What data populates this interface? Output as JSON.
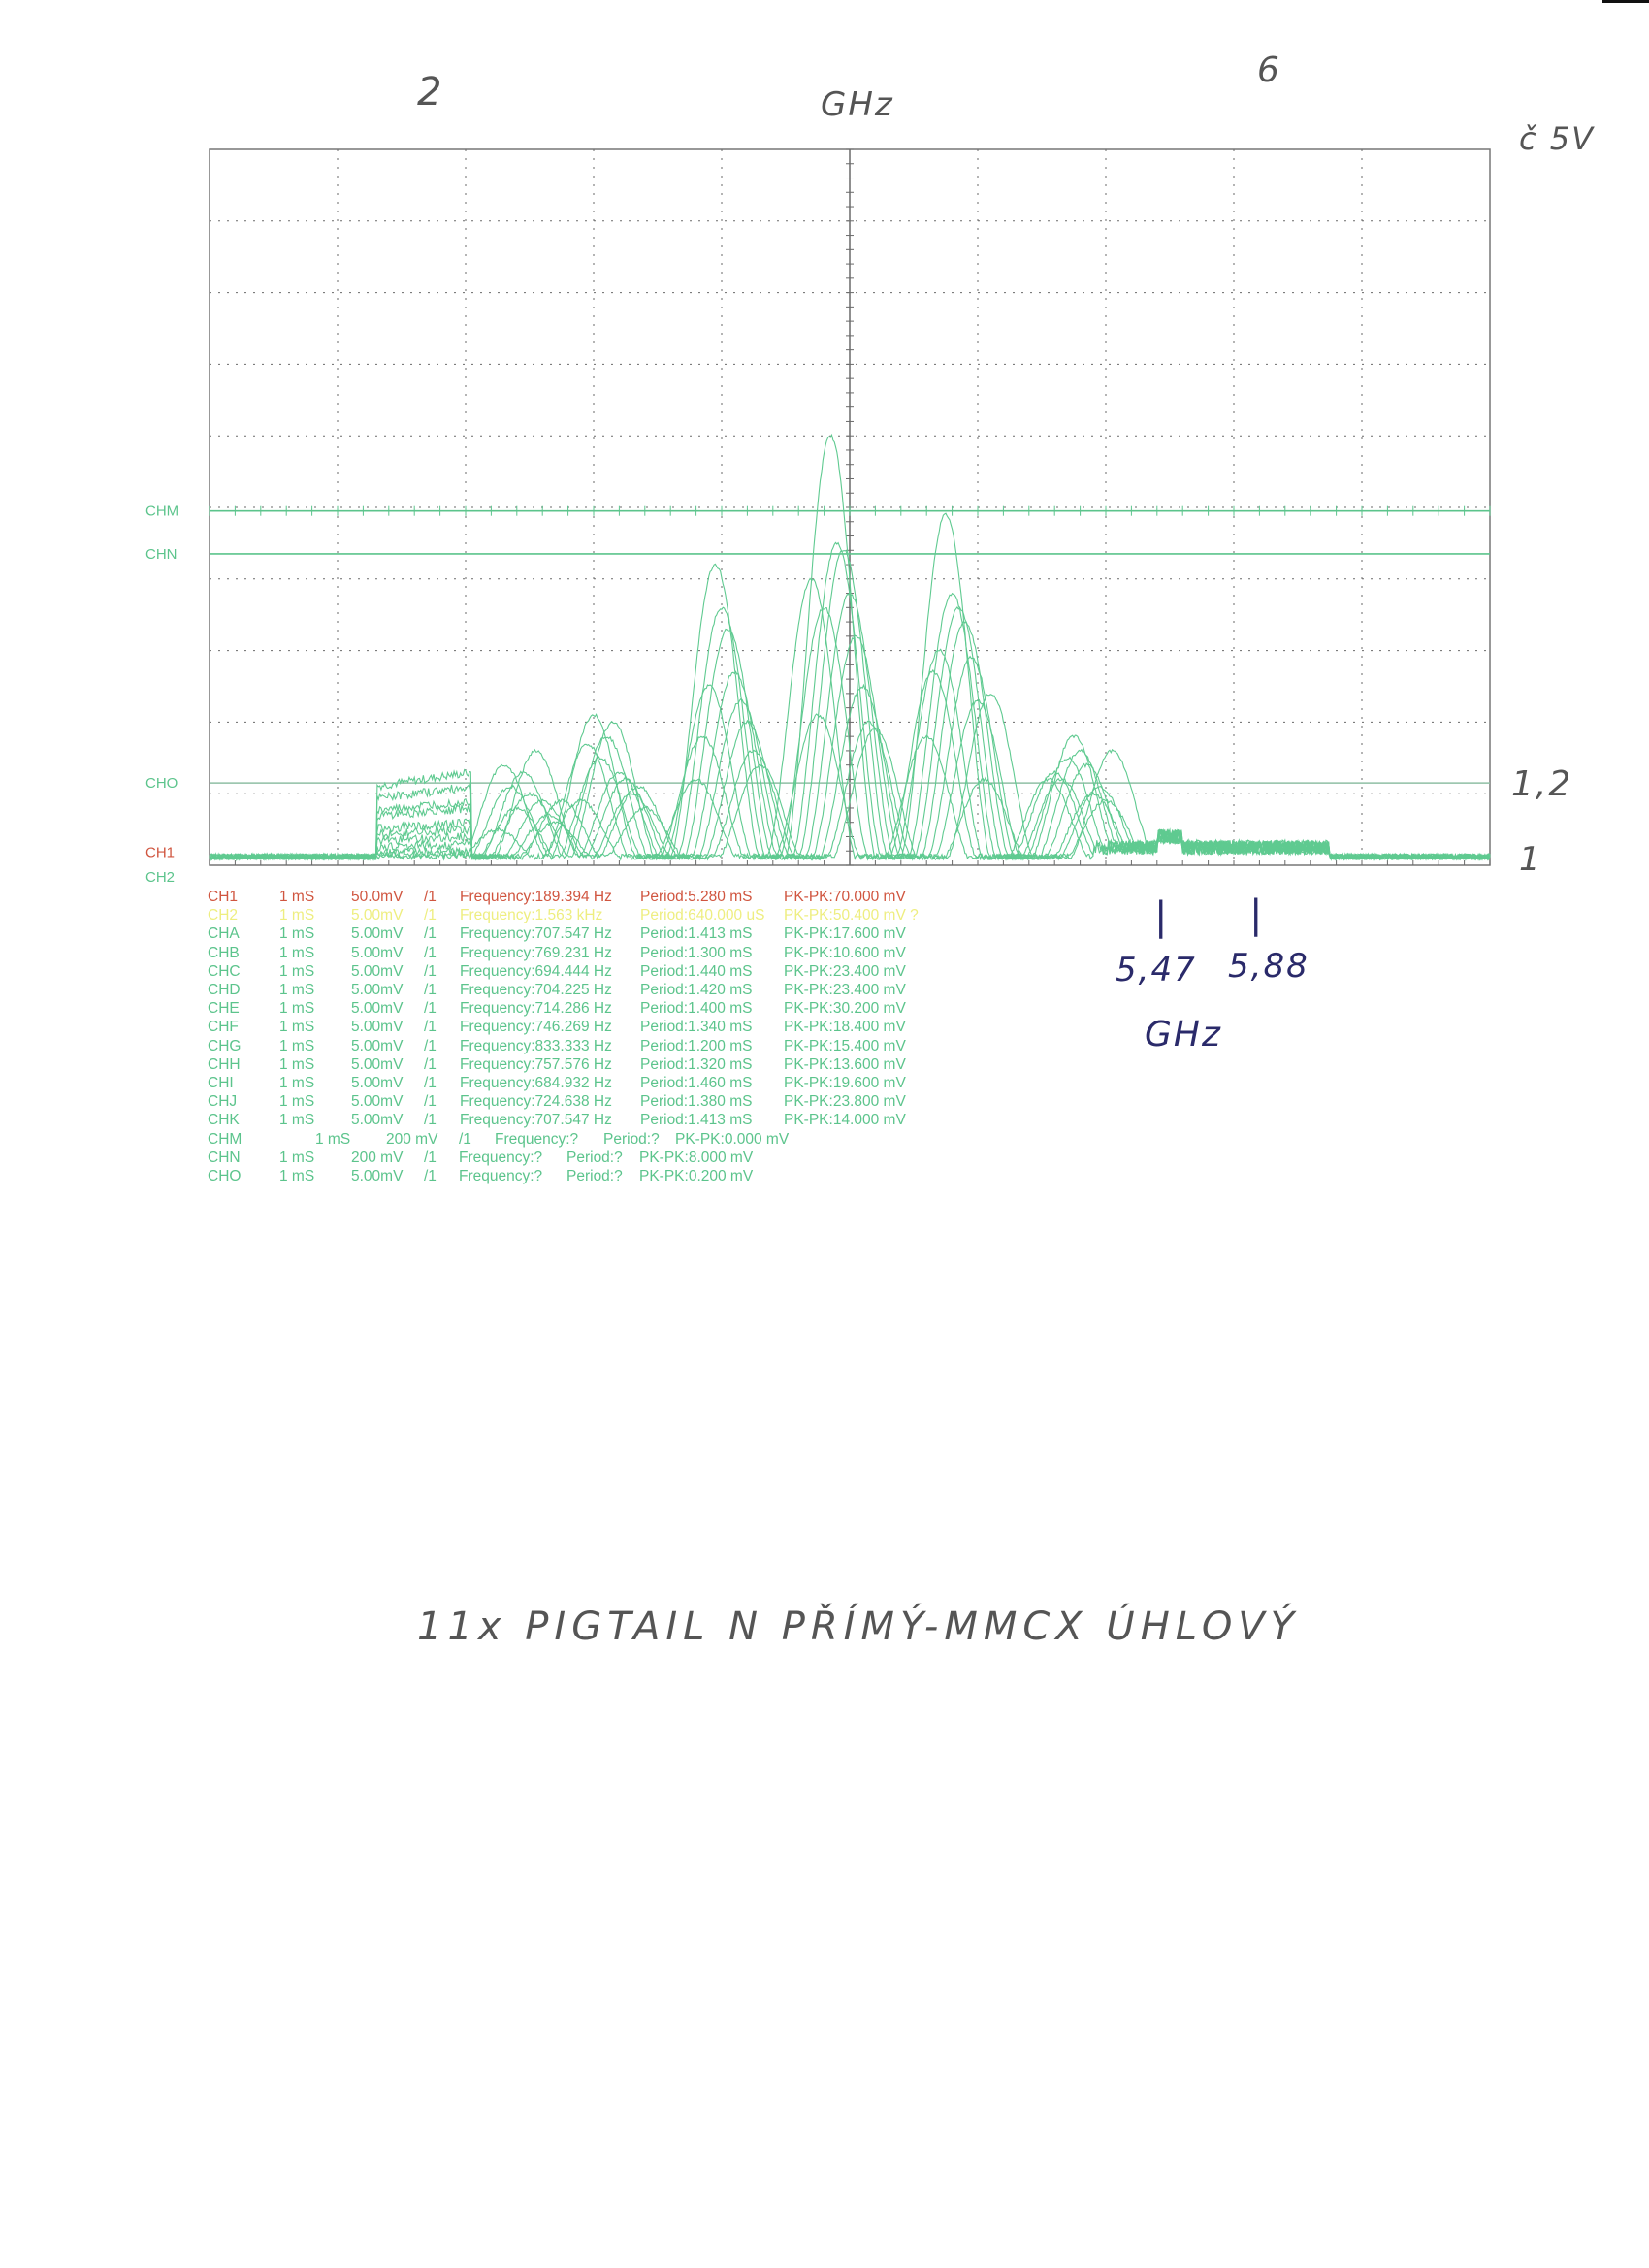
{
  "handwriting": {
    "top_left_mark": "2",
    "top_unit": "GHz",
    "top_right_mark": "6",
    "voltage_note": "č 5V",
    "level_cho": "1,2",
    "level_base": "1",
    "marker_left": "5,47",
    "marker_right": "5,88",
    "marker_unit": "GHz",
    "caption": "11x PIGTAIL N PŘÍMÝ-MMCX ÚHLOVÝ"
  },
  "colors": {
    "ch1": "#d0553f",
    "ch2": "#eeee80",
    "green": "#5cc48c",
    "grid": "#6a6a6a"
  },
  "chart_data": {
    "type": "line",
    "grid": true,
    "x_divisions": 10,
    "y_divisions": 10,
    "xlim": [
      0,
      10
    ],
    "ylim": [
      0,
      10
    ],
    "reference_lines": [
      {
        "name": "CHM",
        "y": 4.95
      },
      {
        "name": "CHN",
        "y": 4.35
      },
      {
        "name": "CHO",
        "y": 1.15
      },
      {
        "name": "CH1",
        "y": 0.05
      },
      {
        "name": "CH2",
        "y": 0.0
      }
    ],
    "peak_positions": [
      2.4,
      3.05,
      3.95,
      4.85,
      5.75,
      6.7
    ],
    "traces": [
      {
        "plateau": 1.3,
        "shift": 0.0,
        "peaks": [
          0.8,
          1.5,
          4.2,
          6.0,
          4.9,
          1.5
        ]
      },
      {
        "plateau": 1.1,
        "shift": 0.05,
        "peaks": [
          1.3,
          1.8,
          3.6,
          4.5,
          3.8,
          1.8
        ]
      },
      {
        "plateau": 0.9,
        "shift": 0.1,
        "peaks": [
          1.0,
          2.0,
          3.3,
          4.4,
          3.6,
          1.6
        ]
      },
      {
        "plateau": 0.8,
        "shift": 0.15,
        "peaks": [
          1.6,
          1.3,
          2.7,
          3.8,
          3.4,
          1.4
        ]
      },
      {
        "plateau": 0.6,
        "shift": -0.05,
        "peaks": [
          1.1,
          2.1,
          2.5,
          3.6,
          3.0,
          1.2
        ]
      },
      {
        "plateau": 0.5,
        "shift": 0.2,
        "peaks": [
          0.9,
          1.2,
          2.3,
          3.2,
          2.9,
          1.0
        ]
      },
      {
        "plateau": 0.4,
        "shift": 0.25,
        "peaks": [
          0.7,
          1.0,
          2.0,
          2.5,
          2.3,
          1.1
        ]
      },
      {
        "plateau": 0.3,
        "shift": -0.1,
        "peaks": [
          1.4,
          1.7,
          1.8,
          2.1,
          2.7,
          1.3
        ]
      },
      {
        "plateau": 0.2,
        "shift": 0.3,
        "peaks": [
          0.6,
          1.1,
          1.6,
          2.0,
          1.2,
          0.9
        ]
      },
      {
        "plateau": 0.15,
        "shift": 0.35,
        "peaks": [
          0.9,
          0.8,
          1.4,
          1.9,
          2.4,
          1.6
        ]
      },
      {
        "plateau": 0.1,
        "shift": -0.15,
        "peaks": [
          0.5,
          0.9,
          1.2,
          4.0,
          1.8,
          1.2
        ]
      }
    ]
  },
  "measurements": [
    {
      "ch": "CH1",
      "time": "1  mS",
      "volt": "50.0mV",
      "probe": "/1",
      "freq": "Frequency:189.394 Hz",
      "period": "Period:5.280 mS",
      "pkpk": "PK-PK:70.000 mV",
      "style": "ch1"
    },
    {
      "ch": "CH2",
      "time": "1  mS",
      "volt": "5.00mV",
      "probe": "/1",
      "freq": "Frequency:1.563 kHz",
      "period": "Period:640.000 uS",
      "pkpk": "PK-PK:50.400 mV ?",
      "style": "ch2"
    },
    {
      "ch": "CHA",
      "time": "1  mS",
      "volt": "5.00mV",
      "probe": "/1",
      "freq": "Frequency:707.547 Hz",
      "period": "Period:1.413 mS",
      "pkpk": "PK-PK:17.600 mV",
      "style": "green"
    },
    {
      "ch": "CHB",
      "time": "1  mS",
      "volt": "5.00mV",
      "probe": "/1",
      "freq": "Frequency:769.231 Hz",
      "period": "Period:1.300 mS",
      "pkpk": "PK-PK:10.600 mV",
      "style": "green"
    },
    {
      "ch": "CHC",
      "time": "1  mS",
      "volt": "5.00mV",
      "probe": "/1",
      "freq": "Frequency:694.444 Hz",
      "period": "Period:1.440 mS",
      "pkpk": "PK-PK:23.400 mV",
      "style": "green"
    },
    {
      "ch": "CHD",
      "time": "1  mS",
      "volt": "5.00mV",
      "probe": "/1",
      "freq": "Frequency:704.225 Hz",
      "period": "Period:1.420 mS",
      "pkpk": "PK-PK:23.400 mV",
      "style": "green"
    },
    {
      "ch": "CHE",
      "time": "1  mS",
      "volt": "5.00mV",
      "probe": "/1",
      "freq": "Frequency:714.286 Hz",
      "period": "Period:1.400 mS",
      "pkpk": "PK-PK:30.200 mV",
      "style": "green"
    },
    {
      "ch": "CHF",
      "time": "1  mS",
      "volt": "5.00mV",
      "probe": "/1",
      "freq": "Frequency:746.269 Hz",
      "period": "Period:1.340 mS",
      "pkpk": "PK-PK:18.400 mV",
      "style": "green"
    },
    {
      "ch": "CHG",
      "time": "1  mS",
      "volt": "5.00mV",
      "probe": "/1",
      "freq": "Frequency:833.333 Hz",
      "period": "Period:1.200 mS",
      "pkpk": "PK-PK:15.400 mV",
      "style": "green"
    },
    {
      "ch": "CHH",
      "time": "1  mS",
      "volt": "5.00mV",
      "probe": "/1",
      "freq": "Frequency:757.576 Hz",
      "period": "Period:1.320 mS",
      "pkpk": "PK-PK:13.600 mV",
      "style": "green"
    },
    {
      "ch": "CHI",
      "time": "1  mS",
      "volt": "5.00mV",
      "probe": "/1",
      "freq": "Frequency:684.932 Hz",
      "period": "Period:1.460 mS",
      "pkpk": "PK-PK:19.600 mV",
      "style": "green"
    },
    {
      "ch": "CHJ",
      "time": "1  mS",
      "volt": "5.00mV",
      "probe": "/1",
      "freq": "Frequency:724.638 Hz",
      "period": "Period:1.380 mS",
      "pkpk": "PK-PK:23.800 mV",
      "style": "green"
    },
    {
      "ch": "CHK",
      "time": "1  mS",
      "volt": "5.00mV",
      "probe": "/1",
      "freq": "Frequency:707.547 Hz",
      "period": "Period:1.413 mS",
      "pkpk": "PK-PK:14.000 mV",
      "style": "green"
    },
    {
      "ch": "CHM",
      "time": "1  mS",
      "volt": "200 mV",
      "probe": "/1",
      "freq": "Frequency:?",
      "period": "Period:?",
      "pkpk": "PK-PK:0.000 mV",
      "style": "green",
      "layout": "shifted"
    },
    {
      "ch": "CHN",
      "time": "1  mS",
      "volt": "200 mV",
      "probe": "/1",
      "freq": "Frequency:?",
      "period": "Period:?",
      "pkpk": "PK-PK:8.000 mV",
      "style": "green",
      "layout": "short"
    },
    {
      "ch": "CHO",
      "time": "1  mS",
      "volt": "5.00mV",
      "probe": "/1",
      "freq": "Frequency:?",
      "period": "Period:?",
      "pkpk": "PK-PK:0.200 mV",
      "style": "green",
      "layout": "short"
    }
  ]
}
